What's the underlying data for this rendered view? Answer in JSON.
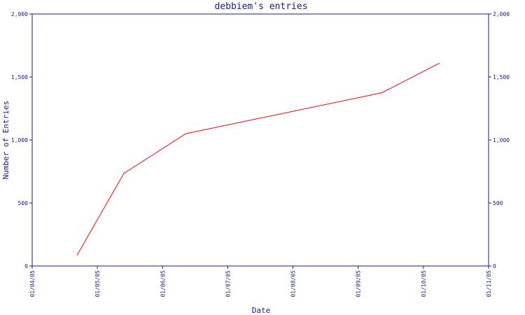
{
  "chart_data": {
    "type": "line",
    "title": "debbiem's entries",
    "xlabel": "Date",
    "ylabel": "Number of Entries",
    "x_ticks": [
      "01/04/05",
      "01/05/05",
      "01/06/05",
      "01/07/05",
      "01/08/05",
      "01/09/05",
      "01/10/05",
      "01/11/05"
    ],
    "x_range": [
      "2005-04-01",
      "2005-11-01"
    ],
    "y_ticks": [
      "0",
      "500",
      "1,000",
      "1,500",
      "2,000"
    ],
    "ylim": [
      0,
      2000
    ],
    "grid": false,
    "legend": "none",
    "series": [
      {
        "color": "#ff0000",
        "points": [
          {
            "x": "2005-04-22",
            "y": 85
          },
          {
            "x": "2005-05-14",
            "y": 735
          },
          {
            "x": "2005-06-12",
            "y": 1050
          },
          {
            "x": "2005-09-12",
            "y": 1375
          },
          {
            "x": "2005-10-09",
            "y": 1610
          }
        ]
      }
    ],
    "colors": {
      "axes": "#1a1a8c",
      "text": "#1a1a8c",
      "line": "#ff0000"
    }
  }
}
